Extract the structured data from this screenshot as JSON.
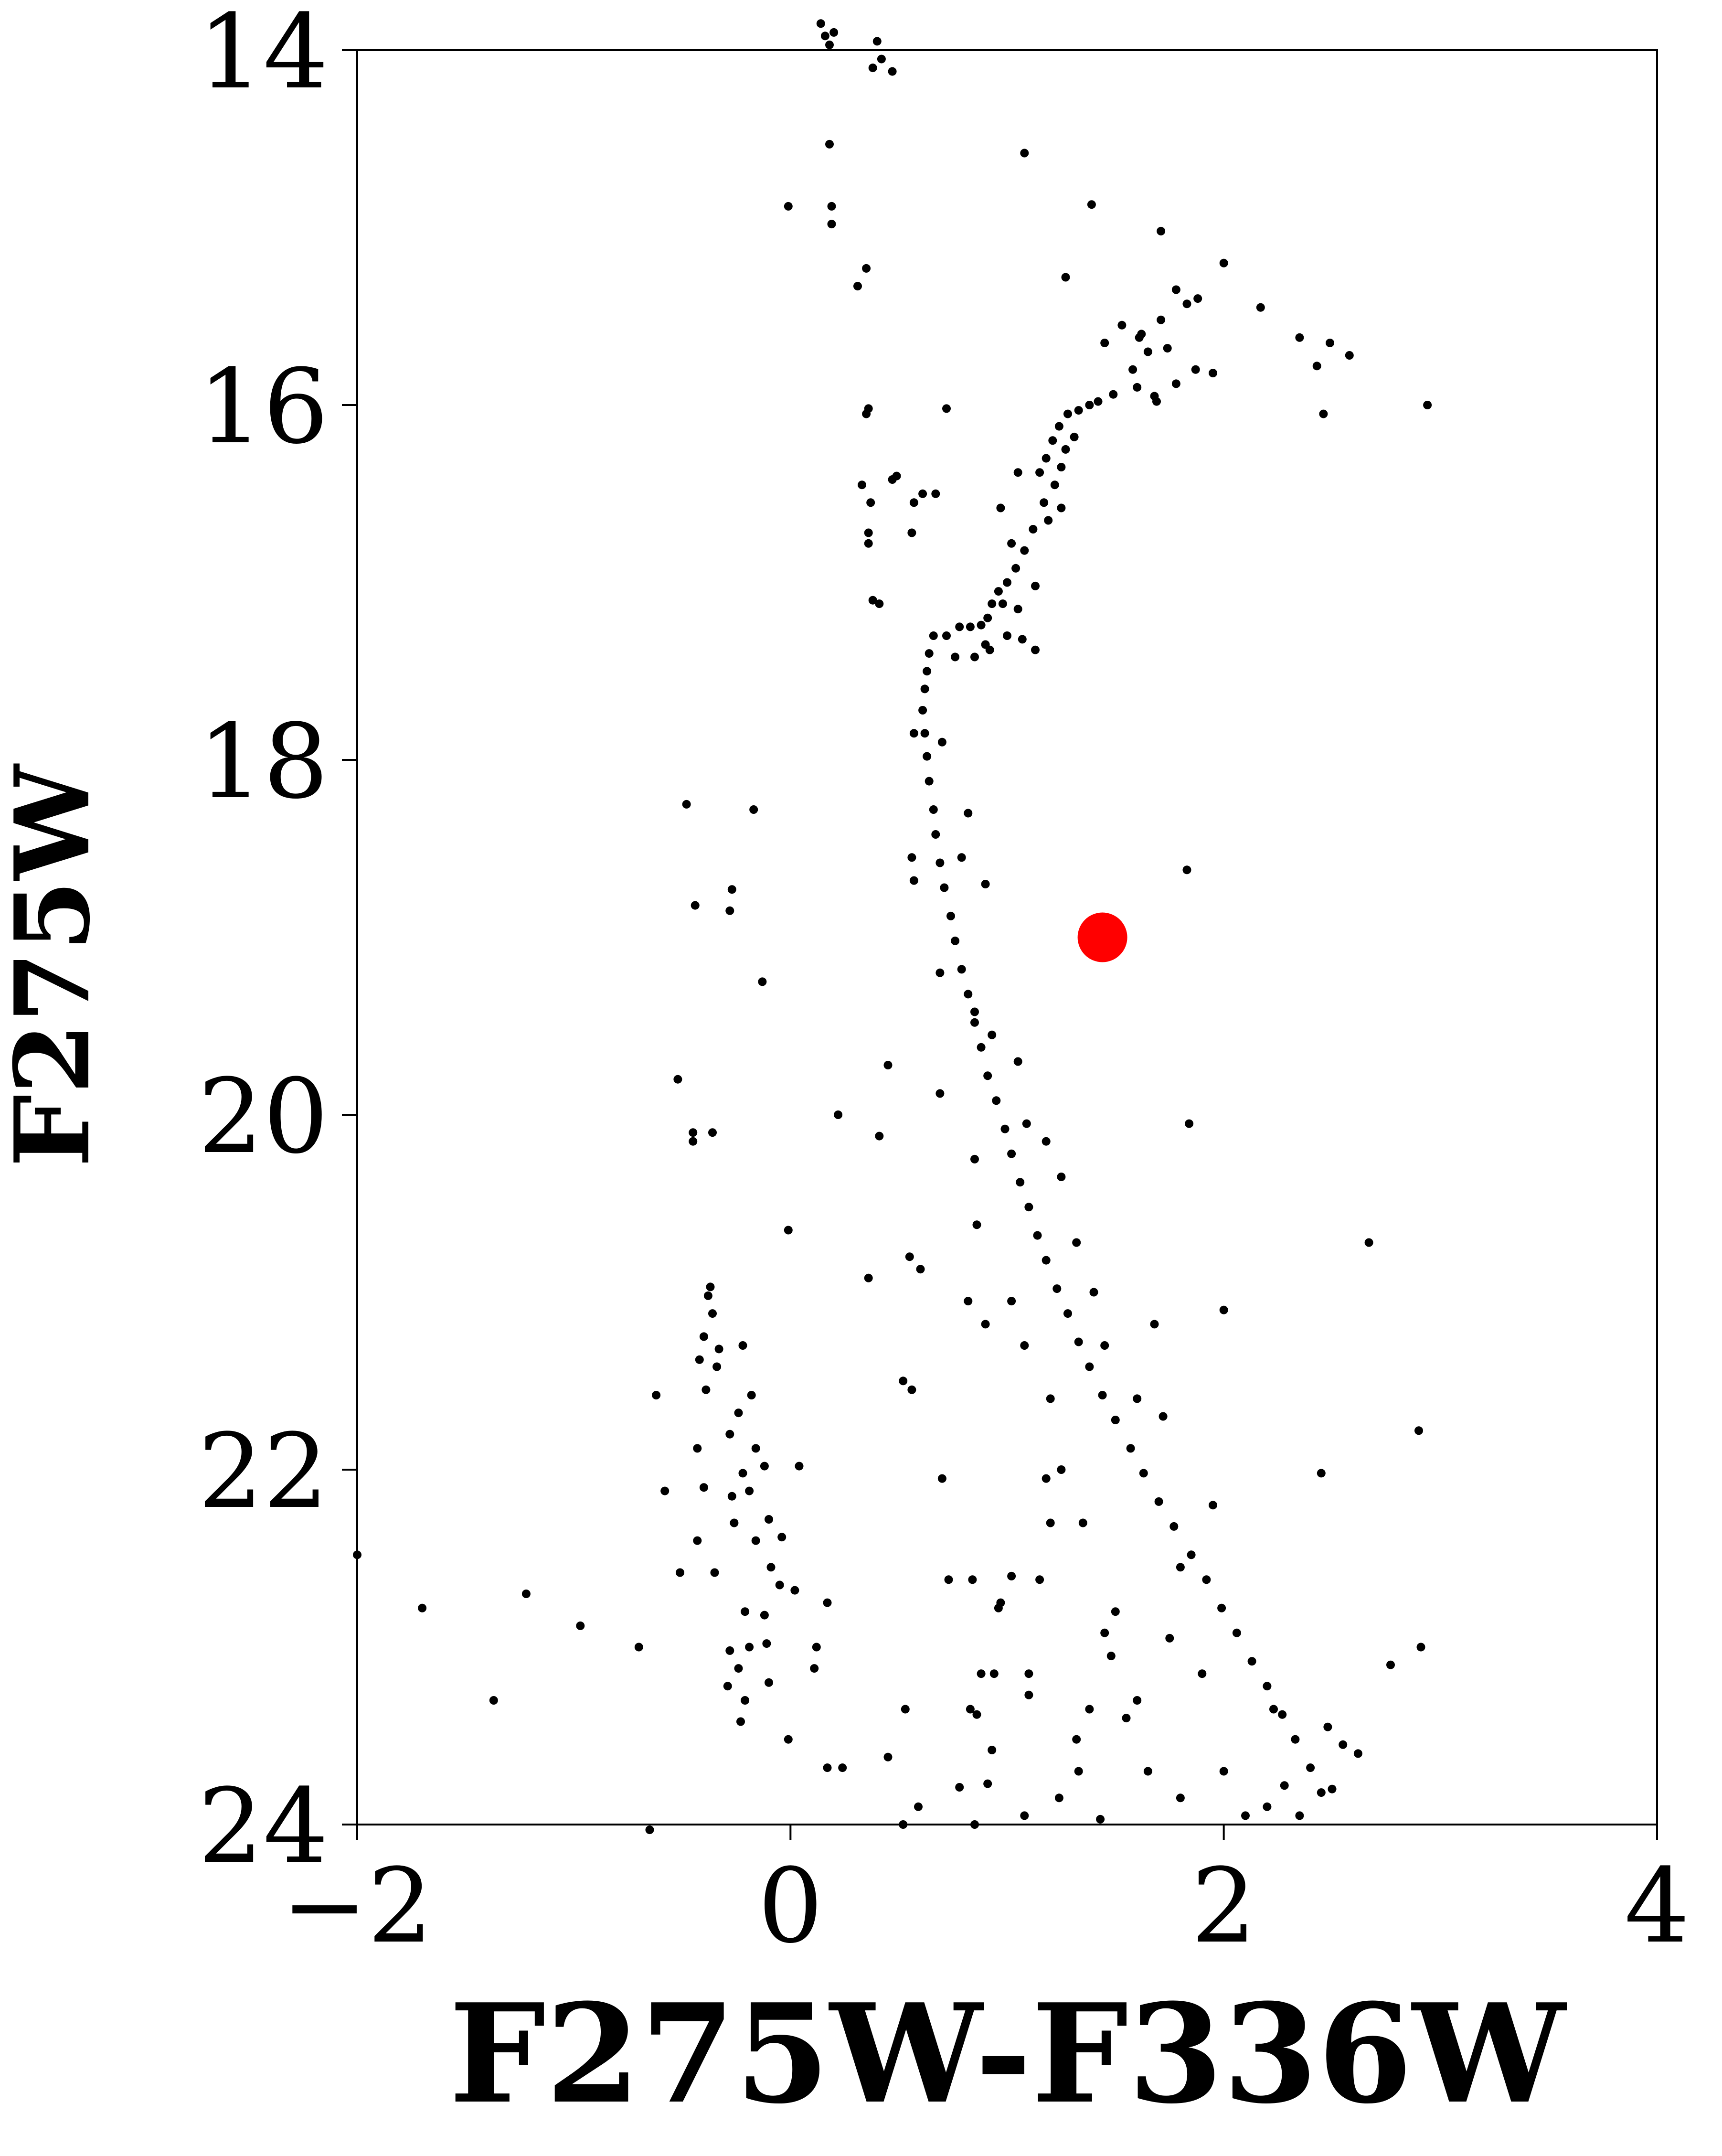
{
  "chart_data": {
    "type": "scatter",
    "title": "",
    "xlabel": "F275W-F336W",
    "ylabel": "F275W",
    "xlim": [
      -2,
      4
    ],
    "ylim": [
      24,
      14
    ],
    "y_axis_inverted": true,
    "grid": false,
    "legend": "none",
    "x_ticks": [
      -2,
      0,
      2,
      4
    ],
    "x_tick_labels": [
      "−2",
      "0",
      "2",
      "4"
    ],
    "y_ticks": [
      14,
      16,
      18,
      20,
      22,
      24
    ],
    "y_tick_labels": [
      "14",
      "16",
      "18",
      "20",
      "22",
      "24"
    ],
    "series": [
      {
        "color": "#000000",
        "marker": "small-dot",
        "description_of_sampled_points": "representative sample",
        "points": [
          [
            0.14,
            13.85
          ],
          [
            0.16,
            13.92
          ],
          [
            0.18,
            13.97
          ],
          [
            0.2,
            13.9
          ],
          [
            0.4,
            13.95
          ],
          [
            0.42,
            14.05
          ],
          [
            0.38,
            14.1
          ],
          [
            0.47,
            14.12
          ],
          [
            0.18,
            14.53
          ],
          [
            1.08,
            14.58
          ],
          [
            -0.01,
            14.88
          ],
          [
            0.19,
            14.88
          ],
          [
            0.19,
            14.98
          ],
          [
            1.39,
            14.87
          ],
          [
            1.71,
            15.02
          ],
          [
            0.35,
            15.23
          ],
          [
            0.31,
            15.33
          ],
          [
            1.27,
            15.28
          ],
          [
            2.0,
            15.2
          ],
          [
            1.88,
            15.4
          ],
          [
            1.83,
            15.43
          ],
          [
            1.78,
            15.35
          ],
          [
            2.17,
            15.45
          ],
          [
            1.62,
            15.6
          ],
          [
            1.71,
            15.52
          ],
          [
            1.53,
            15.55
          ],
          [
            1.61,
            15.62
          ],
          [
            1.45,
            15.65
          ],
          [
            1.65,
            15.7
          ],
          [
            1.74,
            15.68
          ],
          [
            1.58,
            15.8
          ],
          [
            2.35,
            15.62
          ],
          [
            2.49,
            15.65
          ],
          [
            2.58,
            15.72
          ],
          [
            2.43,
            15.78
          ],
          [
            1.87,
            15.8
          ],
          [
            1.95,
            15.82
          ],
          [
            1.78,
            15.88
          ],
          [
            1.68,
            15.95
          ],
          [
            1.6,
            15.9
          ],
          [
            1.49,
            15.94
          ],
          [
            1.42,
            15.98
          ],
          [
            1.38,
            16.0
          ],
          [
            1.33,
            16.03
          ],
          [
            1.28,
            16.05
          ],
          [
            1.24,
            16.12
          ],
          [
            1.21,
            16.2
          ],
          [
            1.18,
            16.3
          ],
          [
            1.15,
            16.38
          ],
          [
            1.31,
            16.18
          ],
          [
            1.27,
            16.25
          ],
          [
            1.25,
            16.35
          ],
          [
            0.72,
            16.02
          ],
          [
            0.36,
            16.02
          ],
          [
            0.35,
            16.05
          ],
          [
            2.46,
            16.05
          ],
          [
            2.94,
            16.0
          ],
          [
            1.69,
            15.98
          ],
          [
            0.49,
            16.4
          ],
          [
            0.47,
            16.42
          ],
          [
            0.33,
            16.45
          ],
          [
            0.67,
            16.5
          ],
          [
            0.61,
            16.5
          ],
          [
            0.37,
            16.55
          ],
          [
            0.57,
            16.55
          ],
          [
            0.36,
            16.72
          ],
          [
            0.36,
            16.78
          ],
          [
            0.56,
            16.72
          ],
          [
            1.05,
            16.38
          ],
          [
            1.22,
            16.45
          ],
          [
            1.17,
            16.55
          ],
          [
            1.12,
            16.7
          ],
          [
            1.19,
            16.65
          ],
          [
            1.25,
            16.58
          ],
          [
            0.97,
            16.58
          ],
          [
            1.02,
            16.78
          ],
          [
            1.08,
            16.82
          ],
          [
            1.04,
            16.92
          ],
          [
            1.0,
            17.0
          ],
          [
            0.96,
            17.05
          ],
          [
            0.93,
            17.12
          ],
          [
            1.05,
            17.15
          ],
          [
            0.91,
            17.2
          ],
          [
            0.88,
            17.24
          ],
          [
            1.13,
            17.02
          ],
          [
            0.98,
            17.12
          ],
          [
            0.83,
            17.25
          ],
          [
            0.78,
            17.25
          ],
          [
            1.0,
            17.3
          ],
          [
            1.07,
            17.32
          ],
          [
            1.13,
            17.38
          ],
          [
            0.9,
            17.35
          ],
          [
            0.38,
            17.1
          ],
          [
            0.41,
            17.12
          ],
          [
            0.72,
            17.3
          ],
          [
            0.76,
            17.42
          ],
          [
            0.85,
            17.42
          ],
          [
            0.92,
            17.38
          ],
          [
            0.66,
            17.3
          ],
          [
            0.64,
            17.4
          ],
          [
            0.63,
            17.5
          ],
          [
            0.62,
            17.6
          ],
          [
            0.61,
            17.72
          ],
          [
            0.62,
            17.85
          ],
          [
            0.63,
            17.98
          ],
          [
            0.64,
            18.12
          ],
          [
            0.66,
            18.28
          ],
          [
            0.67,
            18.42
          ],
          [
            0.69,
            18.58
          ],
          [
            0.71,
            18.72
          ],
          [
            0.74,
            18.88
          ],
          [
            0.76,
            19.02
          ],
          [
            0.79,
            19.18
          ],
          [
            0.82,
            19.32
          ],
          [
            0.85,
            19.48
          ],
          [
            0.88,
            19.62
          ],
          [
            0.91,
            19.78
          ],
          [
            0.95,
            19.92
          ],
          [
            0.99,
            20.08
          ],
          [
            1.02,
            20.22
          ],
          [
            1.06,
            20.38
          ],
          [
            1.1,
            20.52
          ],
          [
            1.14,
            20.68
          ],
          [
            1.18,
            20.82
          ],
          [
            1.23,
            20.98
          ],
          [
            1.28,
            21.12
          ],
          [
            1.33,
            21.28
          ],
          [
            1.38,
            21.42
          ],
          [
            1.44,
            21.58
          ],
          [
            1.5,
            21.72
          ],
          [
            1.57,
            21.88
          ],
          [
            1.63,
            22.02
          ],
          [
            1.7,
            22.18
          ],
          [
            1.77,
            22.32
          ],
          [
            1.85,
            22.48
          ],
          [
            1.92,
            22.62
          ],
          [
            1.99,
            22.78
          ],
          [
            2.06,
            22.92
          ],
          [
            2.13,
            23.08
          ],
          [
            2.2,
            23.22
          ],
          [
            2.27,
            23.38
          ],
          [
            2.33,
            23.52
          ],
          [
            2.4,
            23.68
          ],
          [
            2.45,
            23.82
          ],
          [
            0.7,
            17.9
          ],
          [
            0.57,
            17.85
          ],
          [
            0.82,
            18.3
          ],
          [
            0.79,
            18.55
          ],
          [
            0.9,
            18.7
          ],
          [
            0.56,
            18.55
          ],
          [
            0.57,
            18.68
          ],
          [
            0.69,
            19.2
          ],
          [
            0.85,
            19.42
          ],
          [
            0.93,
            19.55
          ],
          [
            1.05,
            19.7
          ],
          [
            0.69,
            19.88
          ],
          [
            1.09,
            20.05
          ],
          [
            1.18,
            20.15
          ],
          [
            1.25,
            20.35
          ],
          [
            0.85,
            20.25
          ],
          [
            0.86,
            20.62
          ],
          [
            1.32,
            20.72
          ],
          [
            1.4,
            21.0
          ],
          [
            1.02,
            21.05
          ],
          [
            0.9,
            21.18
          ],
          [
            1.68,
            21.18
          ],
          [
            1.45,
            21.3
          ],
          [
            1.08,
            21.3
          ],
          [
            1.2,
            21.6
          ],
          [
            1.6,
            21.6
          ],
          [
            1.72,
            21.7
          ],
          [
            1.25,
            22.0
          ],
          [
            1.35,
            22.3
          ],
          [
            1.95,
            22.2
          ],
          [
            1.8,
            22.55
          ],
          [
            1.5,
            22.8
          ],
          [
            1.75,
            22.95
          ],
          [
            1.9,
            23.15
          ],
          [
            1.6,
            23.3
          ],
          [
            2.23,
            23.35
          ],
          [
            2.48,
            23.45
          ],
          [
            2.55,
            23.55
          ],
          [
            2.62,
            23.6
          ],
          [
            2.0,
            23.7
          ],
          [
            1.8,
            23.85
          ],
          [
            2.1,
            23.95
          ],
          [
            2.2,
            23.9
          ],
          [
            2.35,
            23.95
          ],
          [
            2.5,
            23.8
          ],
          [
            1.65,
            23.7
          ],
          [
            1.55,
            23.4
          ],
          [
            2.28,
            23.78
          ],
          [
            -0.48,
            18.25
          ],
          [
            -0.17,
            18.28
          ],
          [
            -0.44,
            18.82
          ],
          [
            -0.27,
            18.73
          ],
          [
            -0.28,
            18.85
          ],
          [
            -0.13,
            19.25
          ],
          [
            0.45,
            19.72
          ],
          [
            -0.52,
            19.8
          ],
          [
            -0.45,
            20.1
          ],
          [
            -0.36,
            20.1
          ],
          [
            -0.45,
            20.15
          ],
          [
            0.22,
            20.0
          ],
          [
            0.41,
            20.12
          ],
          [
            -0.01,
            20.65
          ],
          [
            0.55,
            20.8
          ],
          [
            0.6,
            20.87
          ],
          [
            0.36,
            20.92
          ],
          [
            -0.37,
            20.97
          ],
          [
            -0.38,
            21.02
          ],
          [
            -0.36,
            21.12
          ],
          [
            -0.4,
            21.25
          ],
          [
            -0.22,
            21.3
          ],
          [
            -0.33,
            21.32
          ],
          [
            -0.42,
            21.38
          ],
          [
            -0.34,
            21.42
          ],
          [
            -0.39,
            21.55
          ],
          [
            -0.18,
            21.58
          ],
          [
            -0.62,
            21.58
          ],
          [
            -0.24,
            21.68
          ],
          [
            -0.28,
            21.8
          ],
          [
            -0.43,
            21.88
          ],
          [
            -0.16,
            21.88
          ],
          [
            -0.12,
            21.98
          ],
          [
            0.04,
            21.98
          ],
          [
            -0.22,
            22.02
          ],
          [
            -0.4,
            22.1
          ],
          [
            -0.27,
            22.15
          ],
          [
            -0.19,
            22.12
          ],
          [
            -0.58,
            22.12
          ],
          [
            -0.26,
            22.3
          ],
          [
            -0.1,
            22.28
          ],
          [
            -0.04,
            22.38
          ],
          [
            -0.43,
            22.4
          ],
          [
            -0.16,
            22.4
          ],
          [
            -0.09,
            22.55
          ],
          [
            -0.35,
            22.58
          ],
          [
            -0.51,
            22.58
          ],
          [
            -0.05,
            22.65
          ],
          [
            -0.21,
            22.8
          ],
          [
            -0.12,
            22.82
          ],
          [
            0.17,
            22.75
          ],
          [
            0.02,
            22.68
          ],
          [
            -0.11,
            22.98
          ],
          [
            -0.19,
            23.0
          ],
          [
            -0.28,
            23.02
          ],
          [
            0.12,
            23.0
          ],
          [
            -0.24,
            23.12
          ],
          [
            0.11,
            23.12
          ],
          [
            -0.1,
            23.2
          ],
          [
            -0.29,
            23.22
          ],
          [
            -0.21,
            23.3
          ],
          [
            -0.23,
            23.42
          ],
          [
            -0.01,
            23.52
          ],
          [
            0.17,
            23.68
          ],
          [
            0.24,
            23.68
          ],
          [
            0.45,
            23.62
          ],
          [
            0.53,
            23.35
          ],
          [
            0.59,
            23.9
          ],
          [
            0.52,
            24.0
          ],
          [
            -0.65,
            24.03
          ],
          [
            -2.0,
            22.48
          ],
          [
            -1.7,
            22.78
          ],
          [
            -1.22,
            22.7
          ],
          [
            -1.37,
            23.3
          ],
          [
            -0.97,
            22.88
          ],
          [
            -0.7,
            23.0
          ],
          [
            0.78,
            23.79
          ],
          [
            1.38,
            23.35
          ],
          [
            1.24,
            23.85
          ],
          [
            1.43,
            23.97
          ],
          [
            1.45,
            22.92
          ],
          [
            1.48,
            23.05
          ],
          [
            1.1,
            23.27
          ],
          [
            1.32,
            23.52
          ],
          [
            1.33,
            23.7
          ],
          [
            1.08,
            23.95
          ],
          [
            0.86,
            23.38
          ],
          [
            0.83,
            23.35
          ],
          [
            0.93,
            23.58
          ],
          [
            0.91,
            23.77
          ],
          [
            0.85,
            24.0
          ],
          [
            0.94,
            23.15
          ],
          [
            0.96,
            22.78
          ],
          [
            0.97,
            22.75
          ],
          [
            0.88,
            23.15
          ],
          [
            1.02,
            22.6
          ],
          [
            1.15,
            22.62
          ],
          [
            1.1,
            23.15
          ],
          [
            0.84,
            22.62
          ],
          [
            0.82,
            21.05
          ],
          [
            0.7,
            22.05
          ],
          [
            0.56,
            21.55
          ],
          [
            0.52,
            21.5
          ],
          [
            1.18,
            22.05
          ],
          [
            1.2,
            22.3
          ],
          [
            0.73,
            22.62
          ],
          [
            2.0,
            21.1
          ],
          [
            1.84,
            20.05
          ],
          [
            2.67,
            20.72
          ],
          [
            2.9,
            21.78
          ],
          [
            2.45,
            22.02
          ],
          [
            2.77,
            23.1
          ],
          [
            2.91,
            23.0
          ],
          [
            1.83,
            18.62
          ],
          [
            1.44,
            19.0
          ]
        ]
      },
      {
        "color": "#ff0000",
        "marker": "large-circle",
        "points": [
          [
            1.44,
            19.0
          ]
        ]
      }
    ]
  }
}
